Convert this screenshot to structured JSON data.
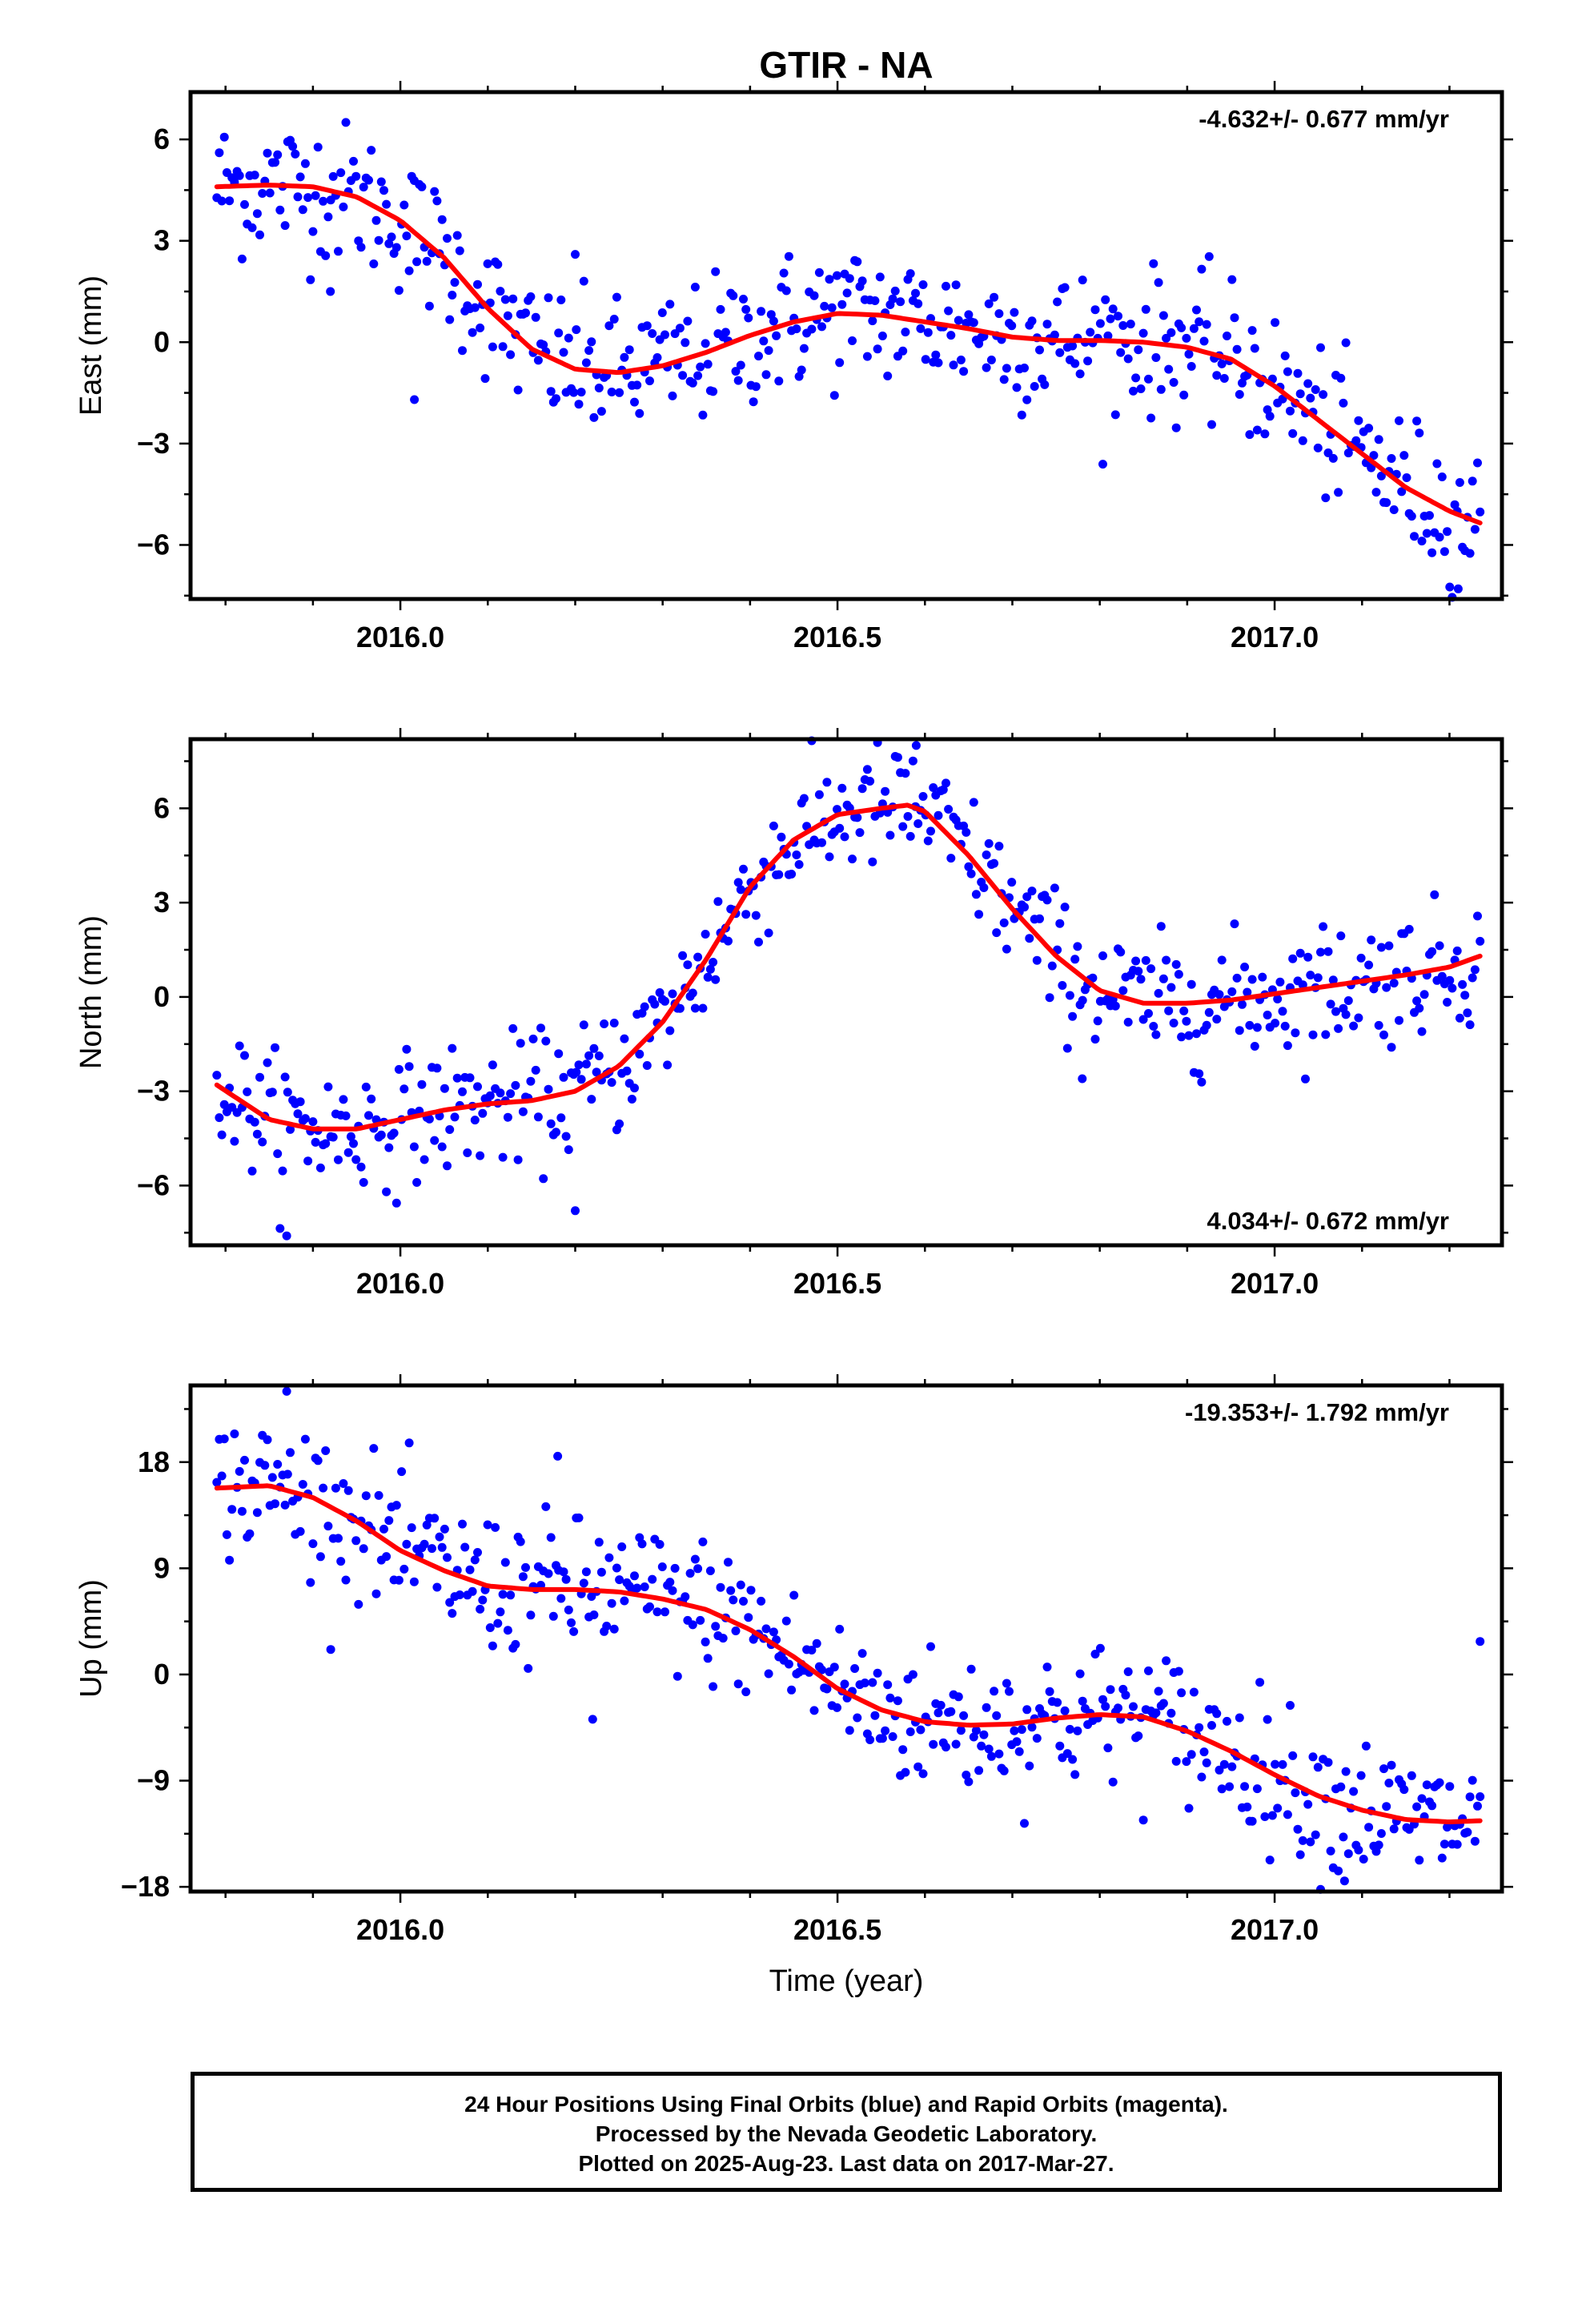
{
  "title": "GTIR - NA",
  "xlabel": "Time (year)",
  "footer": {
    "line1": "24 Hour Positions Using Final Orbits (blue) and Rapid Orbits (magenta).",
    "line2": "Processed by the Nevada Geodetic Laboratory.",
    "line3": "Plotted on 2025-Aug-23. Last data on 2017-Mar-27."
  },
  "colors": {
    "points": "#0000ff",
    "fit": "#ff0000",
    "axes": "#000000"
  },
  "chart_data": [
    {
      "type": "scatter",
      "name": "east",
      "ylabel": "East (mm)",
      "rate_label": "-4.632+/- 0.677 mm/yr",
      "rate_position": "top-right",
      "xlim": [
        2015.76,
        2017.26
      ],
      "ylim": [
        -7.6,
        7.4
      ],
      "xticks": [
        2016.0,
        2016.5,
        2017.0
      ],
      "xtick_labels": [
        "2016.0",
        "2016.5",
        "2017.0"
      ],
      "yticks": [
        -6,
        -3,
        0,
        3,
        6
      ],
      "ytick_labels": [
        "−6",
        "−3",
        "0",
        "3",
        "6"
      ],
      "fit": {
        "x": [
          2015.79,
          2015.85,
          2015.9,
          2015.95,
          2016.0,
          2016.05,
          2016.1,
          2016.15,
          2016.2,
          2016.25,
          2016.3,
          2016.35,
          2016.4,
          2016.45,
          2016.5,
          2016.55,
          2016.6,
          2016.65,
          2016.7,
          2016.75,
          2016.8,
          2016.85,
          2016.9,
          2016.95,
          2017.0,
          2017.05,
          2017.1,
          2017.15,
          2017.2,
          2017.235
        ],
        "y": [
          4.6,
          4.65,
          4.6,
          4.3,
          3.6,
          2.5,
          1.0,
          -0.2,
          -0.8,
          -0.9,
          -0.7,
          -0.3,
          0.2,
          0.6,
          0.85,
          0.8,
          0.6,
          0.4,
          0.15,
          0.05,
          0.05,
          0.0,
          -0.15,
          -0.5,
          -1.3,
          -2.3,
          -3.3,
          -4.3,
          -5.0,
          -5.35
        ]
      },
      "scatter_sd": 1.05,
      "n_points": 500,
      "outliers": [
        {
          "x": 2016.016,
          "y": -1.7
        },
        {
          "x": 2015.92,
          "y": 1.5
        },
        {
          "x": 2016.2,
          "y": 2.6
        },
        {
          "x": 2017.21,
          "y": -7.3
        }
      ]
    },
    {
      "type": "scatter",
      "name": "north",
      "ylabel": "North (mm)",
      "rate_label": "4.034+/- 0.672 mm/yr",
      "rate_position": "bottom-right",
      "xlim": [
        2015.76,
        2017.26
      ],
      "ylim": [
        -7.9,
        8.2
      ],
      "xticks": [
        2016.0,
        2016.5,
        2017.0
      ],
      "xtick_labels": [
        "2016.0",
        "2016.5",
        "2017.0"
      ],
      "yticks": [
        -6,
        -3,
        0,
        3,
        6
      ],
      "ytick_labels": [
        "−6",
        "−3",
        "0",
        "3",
        "6"
      ],
      "fit": {
        "x": [
          2015.79,
          2015.85,
          2015.9,
          2015.95,
          2016.0,
          2016.05,
          2016.1,
          2016.15,
          2016.2,
          2016.25,
          2016.3,
          2016.35,
          2016.4,
          2016.45,
          2016.5,
          2016.55,
          2016.58,
          2016.6,
          2016.65,
          2016.7,
          2016.75,
          2016.8,
          2016.85,
          2016.9,
          2016.95,
          2017.0,
          2017.05,
          2017.1,
          2017.15,
          2017.2,
          2017.235
        ],
        "y": [
          -2.8,
          -3.9,
          -4.2,
          -4.2,
          -3.9,
          -3.6,
          -3.4,
          -3.3,
          -3.0,
          -2.2,
          -0.8,
          1.2,
          3.5,
          5.0,
          5.8,
          6.0,
          6.1,
          5.9,
          4.5,
          2.8,
          1.3,
          0.2,
          -0.2,
          -0.2,
          -0.1,
          0.1,
          0.3,
          0.5,
          0.7,
          0.95,
          1.3
        ]
      },
      "scatter_sd": 1.0,
      "n_points": 500,
      "outliers": [
        {
          "x": 2016.2,
          "y": -6.8
        },
        {
          "x": 2015.87,
          "y": -7.6
        },
        {
          "x": 2016.59,
          "y": 8.0
        },
        {
          "x": 2016.78,
          "y": -2.6
        }
      ]
    },
    {
      "type": "scatter",
      "name": "up",
      "ylabel": "Up (mm)",
      "rate_label": "-19.353+/- 1.792 mm/yr",
      "rate_position": "top-right",
      "xlim": [
        2015.76,
        2017.26
      ],
      "ylim": [
        -18.4,
        24.5
      ],
      "xticks": [
        2016.0,
        2016.5,
        2017.0
      ],
      "xtick_labels": [
        "2016.0",
        "2016.5",
        "2017.0"
      ],
      "yticks": [
        -18,
        -9,
        0,
        9,
        18
      ],
      "ytick_labels": [
        "−18",
        "−9",
        "0",
        "9",
        "18"
      ],
      "fit": {
        "x": [
          2015.79,
          2015.85,
          2015.9,
          2015.95,
          2016.0,
          2016.05,
          2016.1,
          2016.15,
          2016.2,
          2016.25,
          2016.3,
          2016.35,
          2016.4,
          2016.45,
          2016.5,
          2016.55,
          2016.6,
          2016.65,
          2016.7,
          2016.75,
          2016.8,
          2016.85,
          2016.9,
          2016.95,
          2017.0,
          2017.05,
          2017.1,
          2017.15,
          2017.2,
          2017.235
        ],
        "y": [
          15.8,
          16.0,
          15.0,
          13.0,
          10.5,
          8.8,
          7.5,
          7.2,
          7.2,
          7.0,
          6.4,
          5.5,
          3.8,
          1.5,
          -1.2,
          -3.0,
          -4.0,
          -4.3,
          -4.2,
          -3.7,
          -3.4,
          -3.6,
          -4.8,
          -6.5,
          -8.5,
          -10.3,
          -11.5,
          -12.3,
          -12.5,
          -12.4
        ]
      },
      "scatter_sd": 3.0,
      "n_points": 500,
      "outliers": [
        {
          "x": 2016.18,
          "y": 18.5
        },
        {
          "x": 2016.22,
          "y": -3.8
        },
        {
          "x": 2017.235,
          "y": 2.8
        },
        {
          "x": 2017.08,
          "y": -17.5
        },
        {
          "x": 2015.87,
          "y": 24.0
        }
      ]
    }
  ]
}
